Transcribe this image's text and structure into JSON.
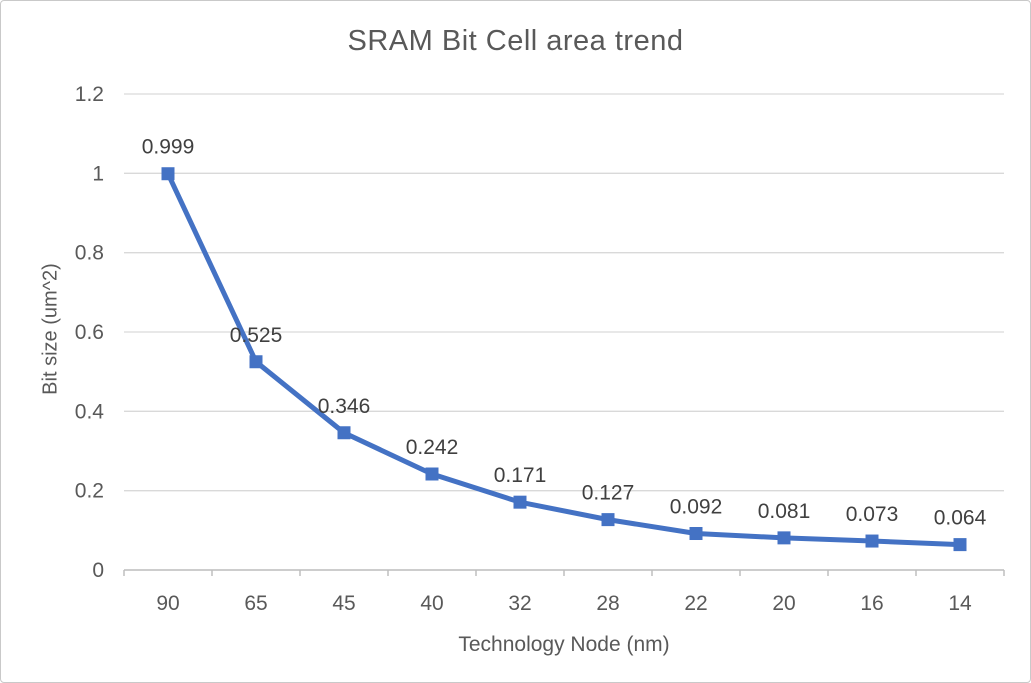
{
  "chart_data": {
    "type": "line",
    "title": "SRAM Bit Cell area trend",
    "xlabel": "Technology Node (nm)",
    "ylabel": "Bit size (um^2)",
    "categories": [
      "90",
      "65",
      "45",
      "40",
      "32",
      "28",
      "22",
      "20",
      "16",
      "14"
    ],
    "values": [
      0.999,
      0.525,
      0.346,
      0.242,
      0.171,
      0.127,
      0.092,
      0.081,
      0.073,
      0.064
    ],
    "data_labels": [
      "0.999",
      "0.525",
      "0.346",
      "0.242",
      "0.171",
      "0.127",
      "0.092",
      "0.081",
      "0.073",
      "0.064"
    ],
    "ylim": [
      0,
      1.2
    ],
    "yticks": [
      {
        "value": 0,
        "label": "0"
      },
      {
        "value": 0.2,
        "label": "0.2"
      },
      {
        "value": 0.4,
        "label": "0.4"
      },
      {
        "value": 0.6,
        "label": "0.6"
      },
      {
        "value": 0.8,
        "label": "0.8"
      },
      {
        "value": 1,
        "label": "1"
      },
      {
        "value": 1.2,
        "label": "1.2"
      }
    ],
    "grid": "horizontal",
    "legend": "none",
    "marker": "square",
    "colors": {
      "series": "#4472C4",
      "gridline": "#D9D9D9",
      "axis_line": "#BFBFBF",
      "tick_label": "#595959",
      "data_label": "#404040",
      "title": "#595959"
    }
  }
}
